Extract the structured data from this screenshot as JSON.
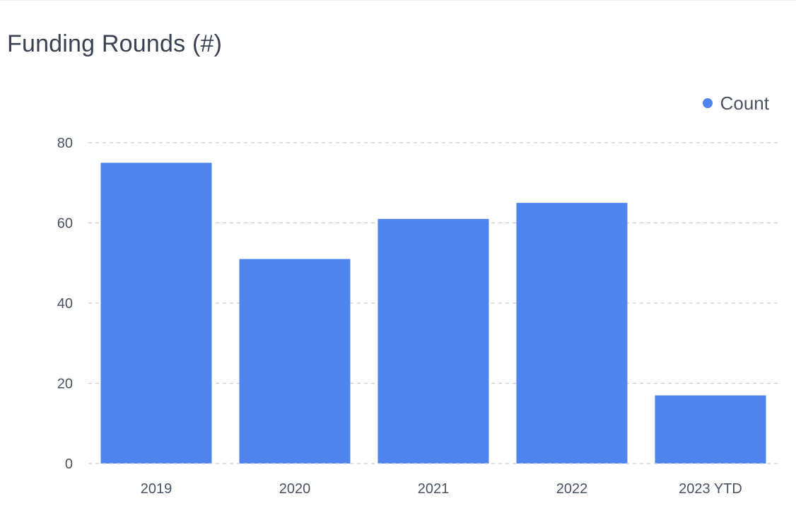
{
  "chart_data": {
    "type": "bar",
    "title": "Funding Rounds (#)",
    "categories": [
      "2019",
      "2020",
      "2021",
      "2022",
      "2023 YTD"
    ],
    "series": [
      {
        "name": "Count",
        "values": [
          75,
          51,
          61,
          65,
          17
        ],
        "color": "#4f83ee"
      }
    ],
    "xlabel": "",
    "ylabel": "",
    "ylim": [
      0,
      80
    ],
    "yticks": [
      0,
      20,
      40,
      60,
      80
    ],
    "grid": true,
    "legend_position": "top-right"
  }
}
